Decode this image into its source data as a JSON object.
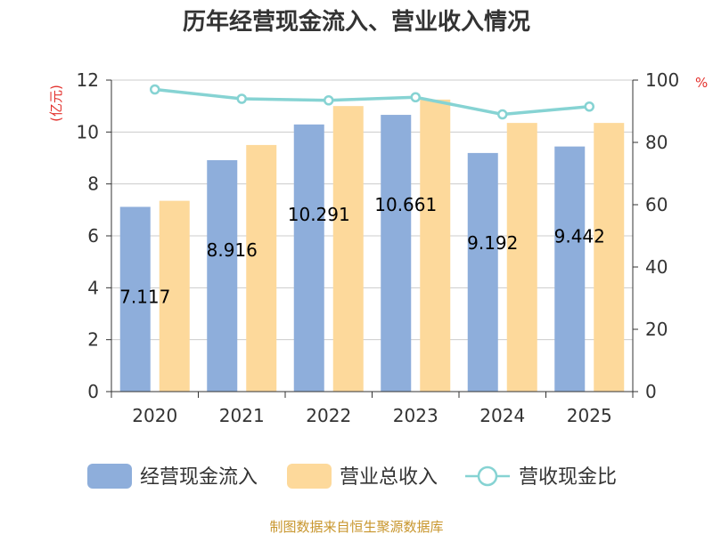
{
  "chart_data": {
    "type": "bar",
    "title": "历年经营现金流入、营业收入情况",
    "categories": [
      "2020",
      "2021",
      "2022",
      "2023",
      "2024",
      "2025"
    ],
    "series": [
      {
        "name": "经营现金流入",
        "kind": "bar",
        "axis": "left",
        "color": "#8eaedb",
        "values": [
          7.117,
          8.916,
          10.291,
          10.661,
          9.192,
          9.442
        ],
        "labels": [
          "7.117",
          "8.916",
          "10.291",
          "10.661",
          "9.192",
          "9.442"
        ]
      },
      {
        "name": "营业总收入",
        "kind": "bar",
        "axis": "left",
        "color": "#fdd99b",
        "values": [
          7.35,
          9.5,
          11.0,
          11.25,
          10.35,
          10.35
        ]
      },
      {
        "name": "营收现金比",
        "kind": "line",
        "axis": "right",
        "color": "#86d3d3",
        "values": [
          97,
          94,
          93.5,
          94.5,
          89,
          91.5
        ]
      }
    ],
    "y_left": {
      "unit": "(亿元)",
      "ylim": [
        0,
        12
      ],
      "ticks": [
        "0",
        "2",
        "4",
        "6",
        "8",
        "10",
        "12"
      ]
    },
    "y_right": {
      "unit": "%",
      "ylim": [
        0,
        100
      ],
      "ticks": [
        "0",
        "20",
        "40",
        "60",
        "80",
        "100"
      ]
    },
    "grid": true,
    "legend_position": "bottom"
  },
  "source_note": "制图数据来自恒生聚源数据库"
}
